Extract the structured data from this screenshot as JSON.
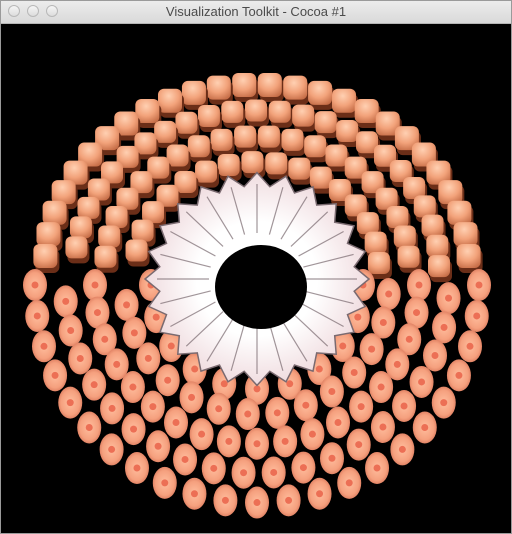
{
  "window": {
    "title": "Visualization Toolkit - Cocoa #1",
    "buttons": [
      "close",
      "minimize",
      "zoom"
    ]
  },
  "scene": {
    "background_color": "#000000",
    "cube_color": "#f2a27a",
    "cube_shadow_color": "#6b2e18",
    "disk_color": "#f7a88a",
    "disk_center_color": "#ec6f55",
    "surface_color": "#f4e4e6",
    "surface_edge_color": "#7a6a70"
  }
}
